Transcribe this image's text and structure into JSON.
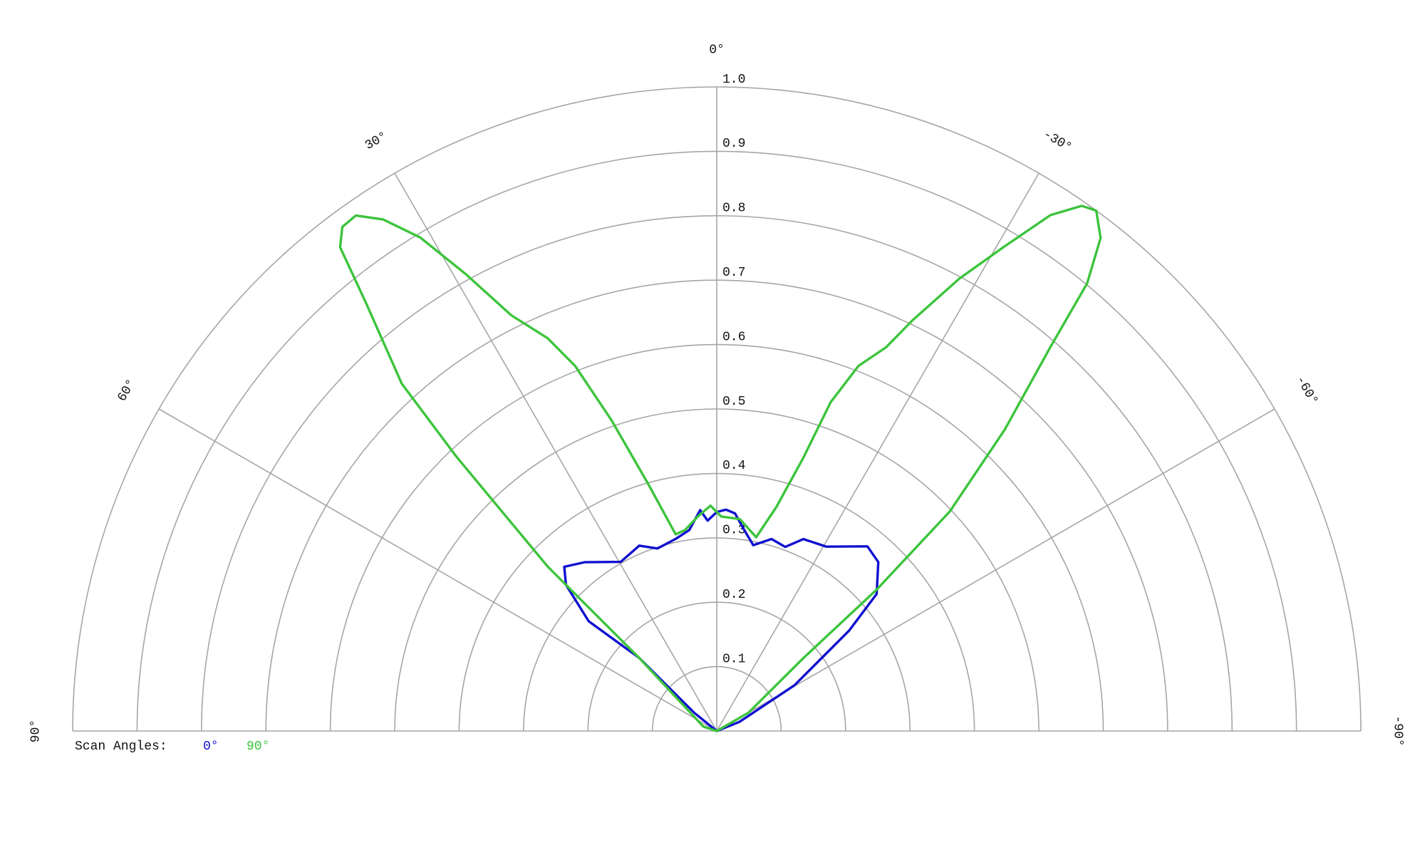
{
  "chart_data": {
    "type": "polar",
    "thetalim": [
      -90,
      90
    ],
    "rlim": [
      0,
      1
    ],
    "rticks": [
      0.1,
      0.2,
      0.3,
      0.4,
      0.5,
      0.6,
      0.7,
      0.8,
      0.9,
      {
        "value": 1,
        "label": "1.0"
      }
    ],
    "thetaticks": [
      {
        "value": 90,
        "label": "90°"
      },
      {
        "value": 60,
        "label": "60°"
      },
      {
        "value": 30,
        "label": "30°"
      },
      {
        "value": 0,
        "label": "0°"
      },
      {
        "value": -30,
        "label": "-30°"
      },
      {
        "value": -60,
        "label": "-60°"
      },
      {
        "value": -90,
        "label": "-90°"
      }
    ],
    "grid": true,
    "legend_title": "Scan Angles:",
    "series": [
      {
        "name": "0°",
        "color": "#1010d0",
        "theta": [
          51,
          46.7,
          49.4,
          45.9,
          42.9,
          38.1,
          29.6,
          22.7,
          18,
          12.1,
          7.8,
          4.3,
          2.5,
          0,
          -2.4,
          -4.8,
          -7.8,
          -11.1,
          -15.9,
          -20.4,
          -24.3,
          -30.7,
          -39.2,
          -43.7,
          -49.4,
          -52.8,
          -59.5,
          -68
        ],
        "values": [
          0.045,
          0.166,
          0.262,
          0.326,
          0.348,
          0.333,
          0.302,
          0.312,
          0.298,
          0.305,
          0.315,
          0.344,
          0.327,
          0.34,
          0.344,
          0.339,
          0.315,
          0.294,
          0.31,
          0.305,
          0.327,
          0.333,
          0.37,
          0.363,
          0.327,
          0.258,
          0.14,
          0.038
        ]
      },
      {
        "name": "90°",
        "color": "#3cc43c",
        "theta": [
          71.6,
          46.7,
          45.8,
          43.5,
          42.2,
          39.3,
          37.9,
          36.6,
          35,
          33.1,
          31,
          28.8,
          26.3,
          23.3,
          21.2,
          18.7,
          15.5,
          11.8,
          9,
          4.9,
          1.6,
          -1.2,
          -6.2,
          -11.5,
          -14.9,
          -17.6,
          -19.1,
          -21.2,
          -23.8,
          -25.5,
          -28.2,
          -30.7,
          -32.9,
          -34.8,
          -36.1,
          -37.9,
          -39.6,
          -41,
          -43.7,
          -46.7,
          -48.5,
          -49.9,
          -60
        ],
        "values": [
          0.022,
          0.166,
          0.366,
          0.587,
          0.728,
          0.861,
          0.952,
          0.975,
          0.977,
          0.948,
          0.894,
          0.81,
          0.72,
          0.664,
          0.608,
          0.509,
          0.398,
          0.312,
          0.316,
          0.335,
          0.35,
          0.333,
          0.331,
          0.307,
          0.36,
          0.446,
          0.54,
          0.608,
          0.651,
          0.707,
          0.797,
          0.875,
          0.954,
          0.993,
          1.0,
          0.97,
          0.902,
          0.789,
          0.647,
          0.497,
          0.332,
          0.176,
          0.057
        ]
      }
    ]
  }
}
